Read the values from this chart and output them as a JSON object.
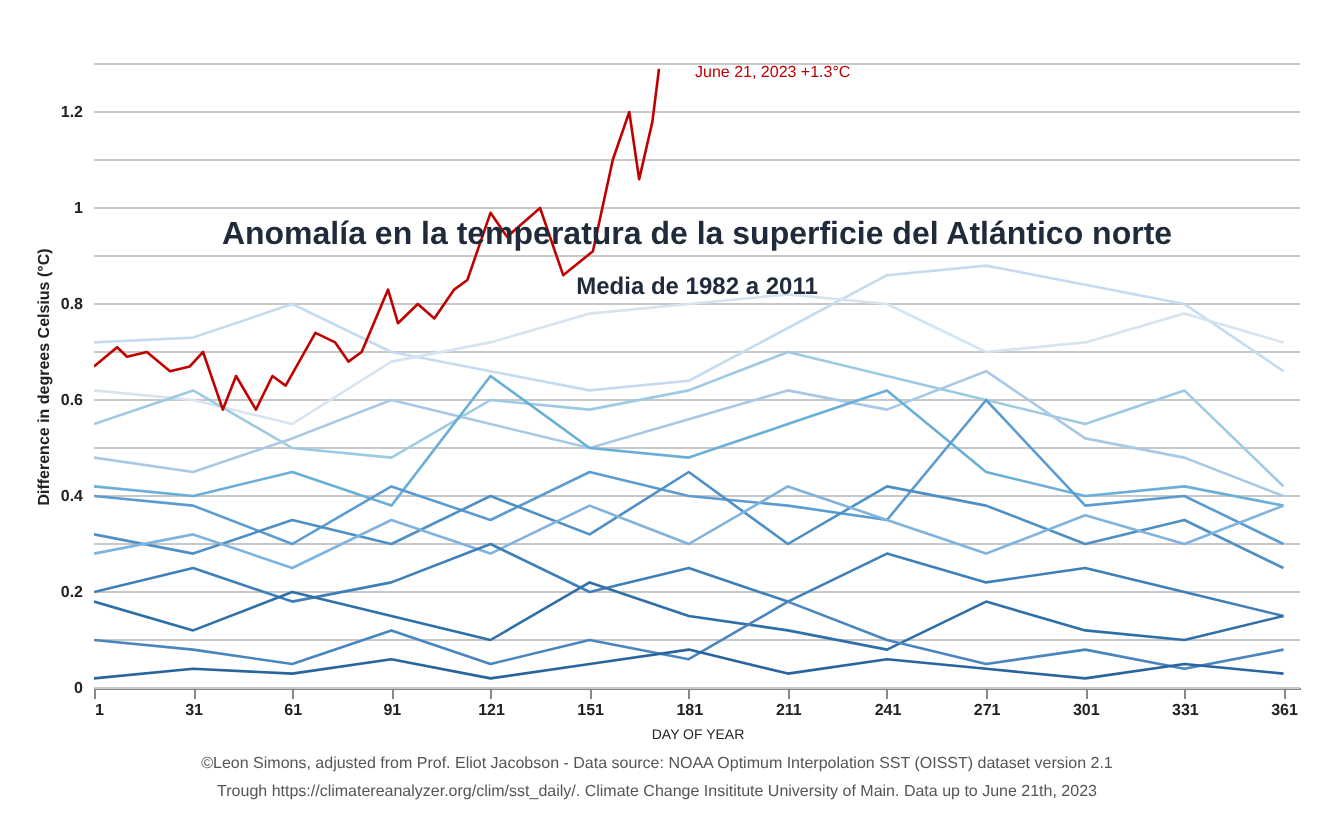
{
  "chart_data": {
    "type": "line",
    "title": "Anomalía en la temperatura de la superficie del Atlántico norte",
    "subtitle": "Media de 1982 a 2011",
    "xlabel": "DAY OF YEAR",
    "ylabel": "Difference in degrees Celsius (°C)",
    "x": [
      1,
      31,
      61,
      91,
      121,
      151,
      181,
      211,
      241,
      271,
      301,
      331,
      361
    ],
    "xlim": [
      1,
      366
    ],
    "xticks": [
      1,
      31,
      61,
      91,
      121,
      151,
      181,
      211,
      241,
      271,
      301,
      331,
      361
    ],
    "ylim": [
      0,
      1.3
    ],
    "yticks": [
      0,
      {
        "value": 0.1,
        "label": null
      },
      0.2,
      {
        "value": 0.3,
        "label": null
      },
      0.4,
      {
        "value": 0.5,
        "label": null
      },
      0.6,
      {
        "value": 0.7,
        "label": null
      },
      0.8,
      {
        "value": 0.9,
        "label": null
      },
      1,
      {
        "value": 1.1,
        "label": null
      },
      1.2,
      {
        "value": 1.3,
        "label": null
      }
    ],
    "grid": "y",
    "line_style": "solid",
    "marker": "none",
    "series": [
      {
        "color": "#c6dbef",
        "values": [
          0.72,
          0.73,
          0.8,
          0.7,
          0.66,
          0.62,
          0.64,
          0.75,
          0.86,
          0.88,
          0.84,
          0.8,
          0.66
        ]
      },
      {
        "color": "#d6e4f2",
        "values": [
          0.62,
          0.6,
          0.55,
          0.68,
          0.72,
          0.78,
          0.8,
          0.82,
          0.8,
          0.7,
          0.72,
          0.78,
          0.72
        ]
      },
      {
        "color": "#9ecae1",
        "values": [
          0.55,
          0.62,
          0.5,
          0.48,
          0.6,
          0.58,
          0.62,
          0.7,
          0.65,
          0.6,
          0.55,
          0.62,
          0.42
        ]
      },
      {
        "color": "#a9c8e4",
        "values": [
          0.48,
          0.45,
          0.52,
          0.6,
          0.55,
          0.5,
          0.56,
          0.62,
          0.58,
          0.66,
          0.52,
          0.48,
          0.4
        ]
      },
      {
        "color": "#6baed6",
        "values": [
          0.42,
          0.4,
          0.45,
          0.38,
          0.65,
          0.5,
          0.48,
          0.55,
          0.62,
          0.45,
          0.4,
          0.42,
          0.38
        ]
      },
      {
        "color": "#5b9bd0",
        "values": [
          0.4,
          0.38,
          0.3,
          0.42,
          0.35,
          0.45,
          0.4,
          0.38,
          0.35,
          0.6,
          0.38,
          0.4,
          0.3
        ]
      },
      {
        "color": "#4f8fc4",
        "values": [
          0.32,
          0.28,
          0.35,
          0.3,
          0.4,
          0.32,
          0.45,
          0.3,
          0.42,
          0.38,
          0.3,
          0.35,
          0.25
        ]
      },
      {
        "color": "#7fb3de",
        "values": [
          0.28,
          0.32,
          0.25,
          0.35,
          0.28,
          0.38,
          0.3,
          0.42,
          0.35,
          0.28,
          0.36,
          0.3,
          0.38
        ]
      },
      {
        "color": "#3f7fb8",
        "values": [
          0.2,
          0.25,
          0.18,
          0.22,
          0.3,
          0.2,
          0.25,
          0.18,
          0.28,
          0.22,
          0.25,
          0.2,
          0.15
        ]
      },
      {
        "color": "#2f6fa8",
        "values": [
          0.18,
          0.12,
          0.2,
          0.15,
          0.1,
          0.22,
          0.15,
          0.12,
          0.08,
          0.18,
          0.12,
          0.1,
          0.15
        ]
      },
      {
        "color": "#4a86bd",
        "values": [
          0.1,
          0.08,
          0.05,
          0.12,
          0.05,
          0.1,
          0.06,
          0.18,
          0.1,
          0.05,
          0.08,
          0.04,
          0.08
        ]
      },
      {
        "color": "#2a649c",
        "values": [
          0.02,
          0.04,
          0.03,
          0.06,
          0.02,
          0.05,
          0.08,
          0.03,
          0.06,
          0.04,
          0.02,
          0.05,
          0.03
        ]
      },
      {
        "color": "#c00000",
        "x": [
          1,
          8,
          11,
          17,
          24,
          30,
          34,
          40,
          44,
          50,
          55,
          59,
          68,
          74,
          78,
          82,
          90,
          93,
          99,
          104,
          110,
          114,
          121,
          126,
          136,
          143,
          152,
          158,
          163,
          166,
          170,
          172
        ],
        "values": [
          0.67,
          0.71,
          0.69,
          0.7,
          0.66,
          0.67,
          0.7,
          0.58,
          0.65,
          0.58,
          0.65,
          0.63,
          0.74,
          0.72,
          0.68,
          0.7,
          0.83,
          0.76,
          0.8,
          0.77,
          0.83,
          0.85,
          0.99,
          0.94,
          1.0,
          0.86,
          0.91,
          1.1,
          1.2,
          1.06,
          1.18,
          1.29
        ]
      }
    ],
    "annotations": [
      {
        "text": "June 21, 2023 +1.3°C",
        "x": 172,
        "y": 1.29
      },
      "©Leon Simons, adjusted from Prof. Eliot Jacobson - Data source: NOAA Optimum Interpolation SST (OISST) dataset version 2.1",
      "Trough https://climatereanalyzer.org/clim/sst_daily/. Climate Change Insititute University of Main. Data up to June 21th, 2023"
    ]
  }
}
